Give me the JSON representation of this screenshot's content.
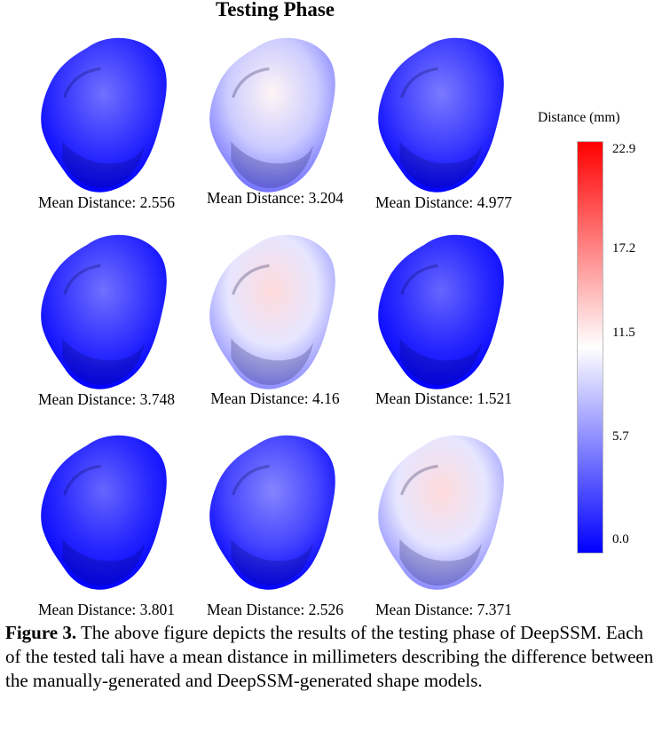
{
  "title": "Testing Phase",
  "shapes": [
    {
      "label": "Mean Distance: 2.556",
      "level": 0.1
    },
    {
      "label": "Mean Distance: 3.204",
      "level": 0.4
    },
    {
      "label": "Mean Distance: 4.977",
      "level": 0.12
    },
    {
      "label": "Mean Distance: 3.748",
      "level": 0.1
    },
    {
      "label": "Mean Distance: 4.16",
      "level": 0.45
    },
    {
      "label": "Mean Distance: 1.521",
      "level": 0.08
    },
    {
      "label": "Mean Distance: 3.801",
      "level": 0.08
    },
    {
      "label": "Mean Distance: 2.526",
      "level": 0.14
    },
    {
      "label": "Mean Distance: 7.371",
      "level": 0.45
    }
  ],
  "colorbar": {
    "title": "Distance (mm)",
    "ticks": [
      "22.9",
      "17.2",
      "11.5",
      "5.7",
      "0.0"
    ],
    "colors": {
      "max": "#ff0000",
      "mid": "#ffffff",
      "min": "#0000ff"
    }
  },
  "caption": {
    "label": "Figure 3.",
    "text": " The above figure depicts the results of the testing phase of DeepSSM. Each of the tested tali have a mean distance in millimeters describing the difference between the manually-generated and DeepSSM-generated shape models."
  }
}
